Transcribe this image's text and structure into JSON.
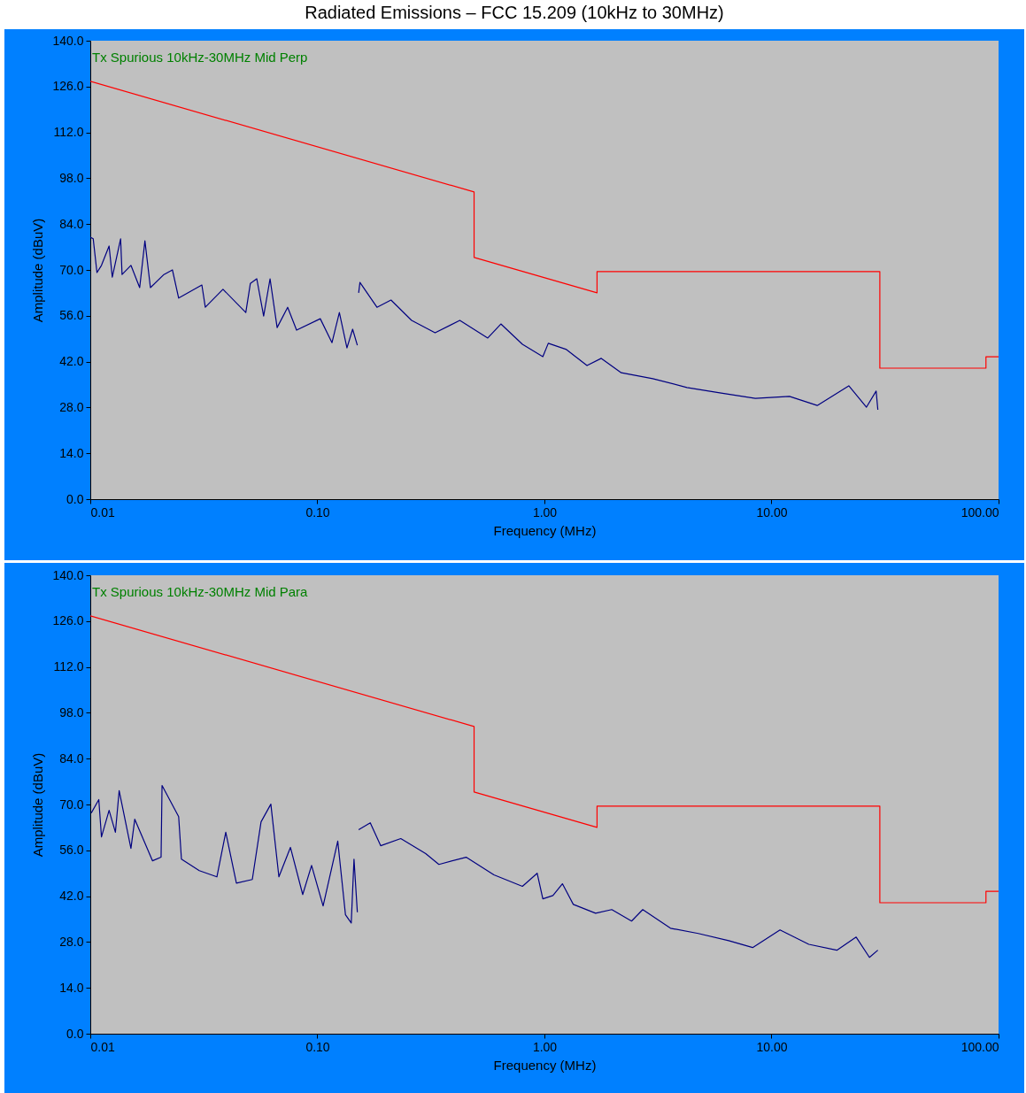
{
  "chart_data": [
    {
      "type": "line",
      "title": "Radiated Emissions – FCC 15.209 (10kHz to 30MHz)",
      "xlabel": "Frequency (MHz)",
      "ylabel": "Amplitude (dBuV)",
      "annotations": [
        "Tx Spurious 10kHz-30MHz Mid Perp"
      ],
      "log": "x",
      "xlim": [
        0.01,
        100
      ],
      "ylim": [
        0,
        140
      ],
      "xticks": [
        {
          "value": 0.01,
          "label": "0.01"
        },
        {
          "value": 0.1,
          "label": "0.10"
        },
        {
          "value": 1,
          "label": "1.00"
        },
        {
          "value": 10,
          "label": "10.00"
        },
        {
          "value": 100,
          "label": "100.00"
        }
      ],
      "yticks": [
        {
          "value": 0,
          "label": "0.0"
        },
        {
          "value": 14,
          "label": "14.0"
        },
        {
          "value": 28,
          "label": "28.0"
        },
        {
          "value": 42,
          "label": "42.0"
        },
        {
          "value": 56,
          "label": "56.0"
        },
        {
          "value": 70,
          "label": "70.0"
        },
        {
          "value": 84,
          "label": "84.0"
        },
        {
          "value": 98,
          "label": "98.0"
        },
        {
          "value": 112,
          "label": "112.0"
        },
        {
          "value": 126,
          "label": "126.0"
        },
        {
          "value": 140,
          "label": "140.0"
        }
      ],
      "series": [
        {
          "type": "line",
          "color": "#ff0000",
          "x": [
            0.01,
            0.49,
            0.49,
            1.705,
            1.705,
            30,
            30,
            88,
            88,
            100
          ],
          "values": [
            127.6,
            93.8,
            73.8,
            63.0,
            69.5,
            69.5,
            40.0,
            40.0,
            43.5,
            43.5
          ]
        },
        {
          "type": "line",
          "color": "#000080",
          "x": [
            0.01,
            0.0103,
            0.0107,
            0.0112,
            0.0121,
            0.0125,
            0.0136,
            0.0138,
            0.0151,
            0.0165,
            0.0174,
            0.0184,
            0.0211,
            0.023,
            0.0245,
            0.031,
            0.0321,
            0.0384,
            0.0484,
            0.0507,
            0.0541,
            0.058,
            0.0619,
            0.0665,
            0.074,
            0.081,
            0.103,
            0.116,
            0.125,
            0.135,
            0.143,
            0.15,
            0.151,
            0.152,
            0.154,
            0.183,
            0.211,
            0.26,
            0.33,
            0.424,
            0.563,
            0.643,
            0.8,
            0.984,
            1.04,
            1.25,
            1.54,
            1.78,
            2.18,
            3.0,
            4.24,
            6.0,
            8.49,
            12.0,
            15.9,
            21.9,
            26.2,
            28.9,
            29.4
          ],
          "values": [
            80.0,
            79.5,
            69.2,
            71.4,
            77.3,
            67.8,
            79.5,
            68.6,
            71.4,
            64.6,
            78.9,
            64.6,
            68.6,
            70.0,
            61.4,
            65.4,
            58.6,
            64.1,
            57.0,
            65.9,
            67.3,
            55.9,
            67.3,
            52.4,
            58.6,
            51.6,
            55.1,
            47.8,
            57.0,
            46.2,
            51.9,
            47.0,
            null,
            63.0,
            66.2,
            58.6,
            60.8,
            54.6,
            50.8,
            54.6,
            49.2,
            53.5,
            47.3,
            43.5,
            47.6,
            45.7,
            40.8,
            43.0,
            38.6,
            36.8,
            34.1,
            32.4,
            30.8,
            31.4,
            28.6,
            34.6,
            28.1,
            33.0,
            27.3
          ]
        }
      ]
    },
    {
      "type": "line",
      "xlabel": "Frequency (MHz)",
      "ylabel": "Amplitude (dBuV)",
      "annotations": [
        "Tx Spurious 10kHz-30MHz Mid Para"
      ],
      "log": "x",
      "xlim": [
        0.01,
        100
      ],
      "ylim": [
        0,
        140
      ],
      "xticks": [
        {
          "value": 0.01,
          "label": "0.01"
        },
        {
          "value": 0.1,
          "label": "0.10"
        },
        {
          "value": 1,
          "label": "1.00"
        },
        {
          "value": 10,
          "label": "10.00"
        },
        {
          "value": 100,
          "label": "100.00"
        }
      ],
      "yticks": [
        {
          "value": 0,
          "label": "0.0"
        },
        {
          "value": 14,
          "label": "14.0"
        },
        {
          "value": 28,
          "label": "28.0"
        },
        {
          "value": 42,
          "label": "42.0"
        },
        {
          "value": 56,
          "label": "56.0"
        },
        {
          "value": 70,
          "label": "70.0"
        },
        {
          "value": 84,
          "label": "84.0"
        },
        {
          "value": 98,
          "label": "98.0"
        },
        {
          "value": 112,
          "label": "112.0"
        },
        {
          "value": 126,
          "label": "126.0"
        },
        {
          "value": 140,
          "label": "140.0"
        }
      ],
      "series": [
        {
          "type": "line",
          "color": "#ff0000",
          "x": [
            0.01,
            0.49,
            0.49,
            1.705,
            1.705,
            30,
            30,
            88,
            88,
            100
          ],
          "values": [
            127.6,
            93.8,
            73.8,
            63.0,
            69.5,
            69.5,
            40.0,
            40.0,
            43.5,
            43.5
          ]
        },
        {
          "type": "line",
          "color": "#000080",
          "x": [
            0.0101,
            0.0109,
            0.0112,
            0.0121,
            0.0129,
            0.0134,
            0.0151,
            0.0157,
            0.0188,
            0.0205,
            0.0207,
            0.0245,
            0.0252,
            0.0302,
            0.0361,
            0.0395,
            0.044,
            0.0517,
            0.0565,
            0.0624,
            0.0677,
            0.0761,
            0.0862,
            0.0943,
            0.106,
            0.123,
            0.133,
            0.141,
            0.145,
            0.15,
            0.151,
            0.152,
            0.171,
            0.19,
            0.233,
            0.3,
            0.343,
            0.452,
            0.599,
            0.8,
            0.929,
            0.984,
            1.09,
            1.2,
            1.34,
            1.68,
            1.98,
            2.42,
            2.71,
            3.59,
            4.76,
            6.48,
            8.26,
            10.9,
            14.6,
            19.4,
            23.6,
            27.0,
            29.4
          ],
          "values": [
            67.4,
            71.5,
            60.1,
            68.2,
            61.5,
            74.2,
            56.6,
            65.5,
            52.8,
            53.9,
            75.8,
            66.3,
            53.3,
            49.8,
            47.9,
            61.5,
            46.0,
            47.1,
            64.7,
            70.1,
            47.9,
            56.9,
            42.5,
            51.4,
            39.0,
            58.8,
            36.3,
            33.8,
            53.3,
            37.1,
            null,
            62.3,
            64.4,
            57.4,
            59.6,
            55.0,
            51.7,
            53.9,
            48.5,
            45.0,
            49.0,
            41.2,
            42.2,
            45.8,
            39.5,
            36.8,
            37.9,
            34.4,
            37.9,
            32.2,
            30.6,
            28.4,
            26.3,
            31.7,
            27.3,
            25.5,
            29.5,
            23.3,
            25.5
          ]
        }
      ]
    }
  ]
}
